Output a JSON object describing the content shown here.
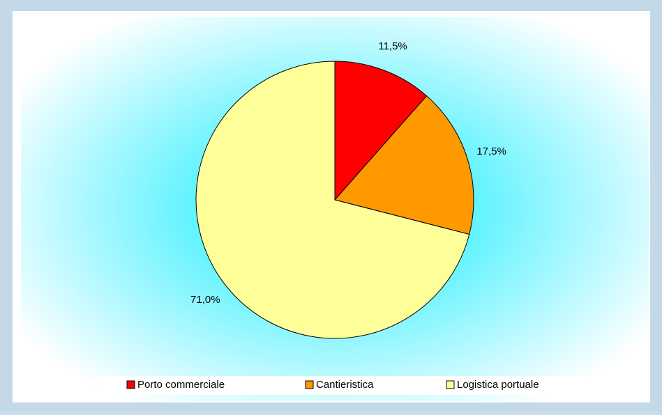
{
  "chart_data": {
    "type": "pie",
    "categories": [
      "Porto commerciale",
      "Cantieristica",
      "Logistica portuale"
    ],
    "values": [
      11.5,
      17.5,
      71.0
    ],
    "value_labels": [
      "11,5%",
      "17,5%",
      "71,0%"
    ],
    "colors": [
      "#ff0000",
      "#ff9900",
      "#ffff99"
    ],
    "legend": "bottom"
  }
}
